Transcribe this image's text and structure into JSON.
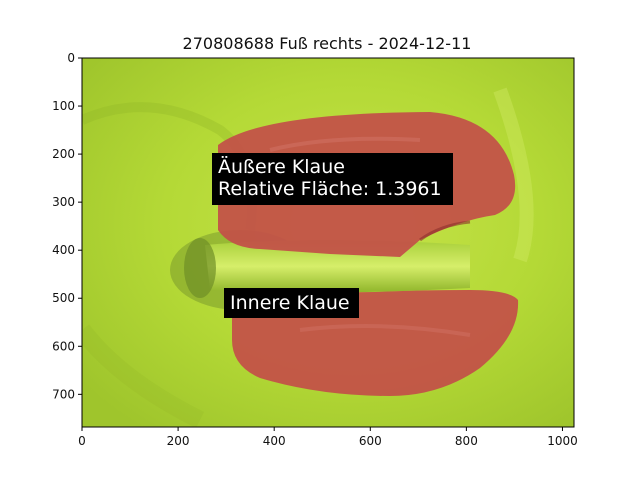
{
  "title": "270808688 Fuß rechts - 2024-12-11",
  "axes": {
    "x_ticks": [
      0,
      200,
      400,
      600,
      800,
      1000
    ],
    "y_ticks": [
      0,
      100,
      200,
      300,
      400,
      500,
      600,
      700
    ],
    "x_range": [
      0,
      1024
    ],
    "y_range": [
      768,
      0
    ]
  },
  "annotations": [
    {
      "line1": "Äußere Klaue",
      "line2": "Relative Fläche: 1.3961"
    },
    {
      "line1": "Innere Klaue"
    }
  ],
  "colors": {
    "background": "#b2d836",
    "overlay": "#c4534a",
    "label_box": "#000000"
  }
}
